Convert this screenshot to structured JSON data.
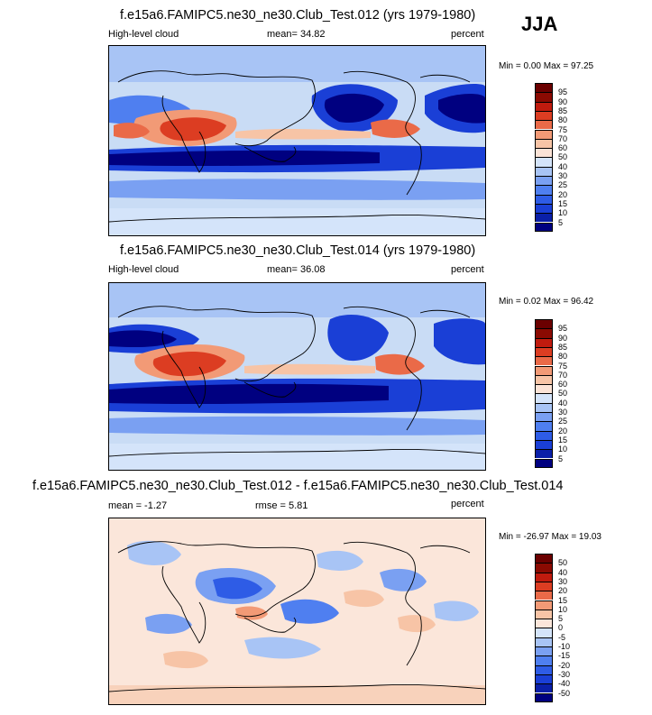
{
  "season": "JJA",
  "panels": [
    {
      "id": "test012",
      "title": "f.e15a6.FAMIPC5.ne30_ne30.Club_Test.012 (yrs 1979-1980)",
      "left_label": "High-level cloud",
      "center_label": "mean=  34.82",
      "right_label": "percent",
      "minmax": "Min =   0.00 Max =  97.25",
      "colorbar_labels": [
        "95",
        "90",
        "85",
        "80",
        "75",
        "70",
        "60",
        "50",
        "40",
        "30",
        "25",
        "20",
        "15",
        "10",
        "5"
      ]
    },
    {
      "id": "test014",
      "title": "f.e15a6.FAMIPC5.ne30_ne30.Club_Test.014 (yrs 1979-1980)",
      "left_label": "High-level cloud",
      "center_label": "mean=  36.08",
      "right_label": "percent",
      "minmax": "Min =   0.02 Max =  96.42",
      "colorbar_labels": [
        "95",
        "90",
        "85",
        "80",
        "75",
        "70",
        "60",
        "50",
        "40",
        "30",
        "25",
        "20",
        "15",
        "10",
        "5"
      ]
    },
    {
      "id": "difference",
      "title": "f.e15a6.FAMIPC5.ne30_ne30.Club_Test.012 - f.e15a6.FAMIPC5.ne30_ne30.Club_Test.014",
      "left_label": "mean =  -1.27",
      "center_label": "rmse =   5.81",
      "right_label": "percent",
      "minmax": "Min = -26.97 Max =  19.03",
      "colorbar_labels": [
        "50",
        "40",
        "30",
        "20",
        "15",
        "10",
        "5",
        "0",
        "-5",
        "-10",
        "-15",
        "-20",
        "-30",
        "-40",
        "-50"
      ]
    }
  ],
  "colors": {
    "seq": [
      "#000080",
      "#0a1fa8",
      "#1a3fd6",
      "#2e5ce6",
      "#4f7ff0",
      "#7aa0f2",
      "#a8c4f5",
      "#d4e4fa",
      "#fbe3d6",
      "#f7c4a6",
      "#f29a76",
      "#ea6a48",
      "#dc3d22",
      "#c01b0e",
      "#8b0a02",
      "#6b0000"
    ],
    "div": [
      "#000080",
      "#0a1fa8",
      "#1a3fd6",
      "#2e5ce6",
      "#4f7ff0",
      "#7aa0f2",
      "#a8c4f5",
      "#d4e4fa",
      "#fbe6da",
      "#f7c4a6",
      "#f29a76",
      "#ea6a48",
      "#dc3d22",
      "#c01b0e",
      "#8b0a02",
      "#6b0000"
    ]
  },
  "chart_data": [
    {
      "type": "heatmap",
      "title": "f.e15a6.FAMIPC5.ne30_ne30.Club_Test.012 (yrs 1979-1980)",
      "variable": "High-level cloud",
      "units": "percent",
      "season": "JJA",
      "mean": 34.82,
      "min": 0.0,
      "max": 97.25,
      "levels": [
        5,
        10,
        15,
        20,
        25,
        30,
        40,
        50,
        60,
        70,
        75,
        80,
        85,
        90,
        95
      ]
    },
    {
      "type": "heatmap",
      "title": "f.e15a6.FAMIPC5.ne30_ne30.Club_Test.014 (yrs 1979-1980)",
      "variable": "High-level cloud",
      "units": "percent",
      "season": "JJA",
      "mean": 36.08,
      "min": 0.02,
      "max": 96.42,
      "levels": [
        5,
        10,
        15,
        20,
        25,
        30,
        40,
        50,
        60,
        70,
        75,
        80,
        85,
        90,
        95
      ]
    },
    {
      "type": "heatmap",
      "title": "f.e15a6.FAMIPC5.ne30_ne30.Club_Test.012 - f.e15a6.FAMIPC5.ne30_ne30.Club_Test.014",
      "units": "percent",
      "mean": -1.27,
      "rmse": 5.81,
      "min": -26.97,
      "max": 19.03,
      "levels": [
        -50,
        -40,
        -30,
        -20,
        -15,
        -10,
        -5,
        0,
        5,
        10,
        15,
        20,
        30,
        40,
        50
      ]
    }
  ]
}
